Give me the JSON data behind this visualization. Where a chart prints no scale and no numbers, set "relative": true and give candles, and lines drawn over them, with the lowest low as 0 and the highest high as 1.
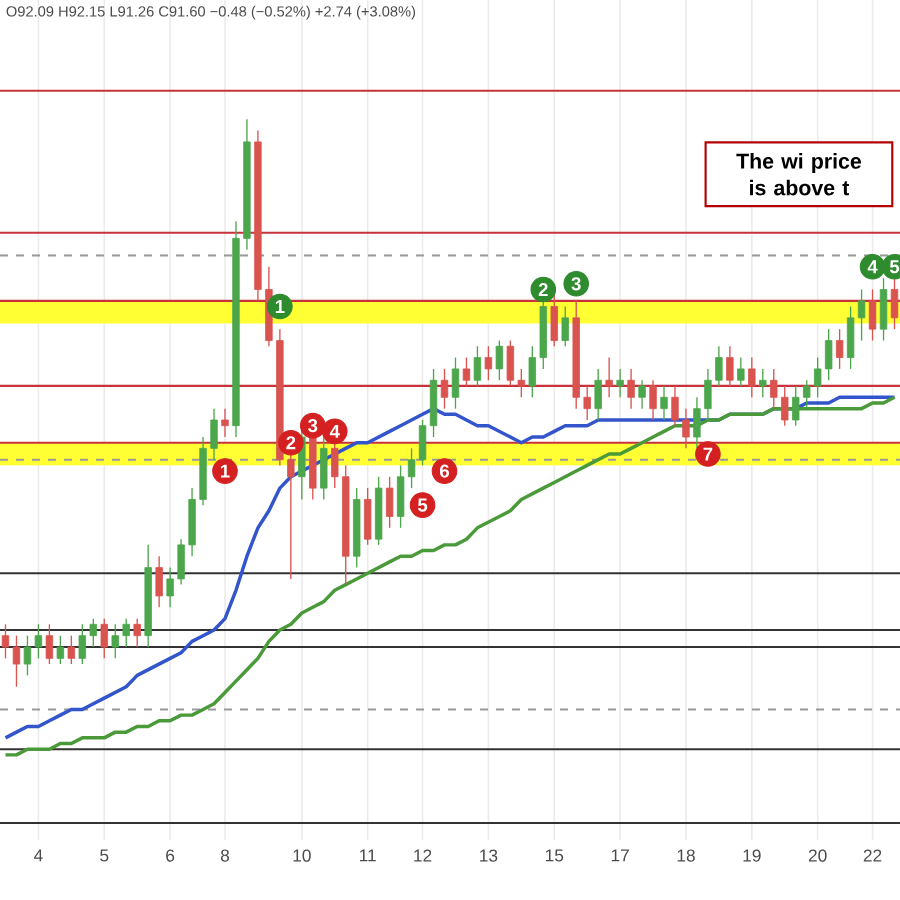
{
  "chart_data": {
    "type": "candlestick",
    "relative": true,
    "tick_labels": "x",
    "grid": "x",
    "annotations": [
      "O92.09 H92.15 L91.26 C91.60 −0.48 (−0.52%) +2.74 (+3.08%)",
      "The wi price is above t",
      {
        "text": "1",
        "y": 0.67
      },
      {
        "text": "2",
        "y": 0.7
      },
      {
        "text": "3",
        "y": 0.71
      },
      {
        "text": "4",
        "y": 0.74
      },
      {
        "text": "5",
        "y": 0.74
      },
      {
        "text": "1",
        "y": 0.38
      },
      {
        "text": "2",
        "y": 0.43
      },
      {
        "text": "3",
        "y": 0.46
      },
      {
        "text": "4",
        "y": 0.45
      },
      {
        "text": "5",
        "y": 0.32
      },
      {
        "text": "6",
        "y": 0.38
      },
      {
        "text": "7",
        "y": 0.41
      }
    ],
    "categories": [
      null,
      null,
      null,
      "4",
      null,
      null,
      null,
      null,
      null,
      "5",
      null,
      null,
      null,
      null,
      null,
      "6",
      null,
      null,
      null,
      null,
      "8",
      null,
      null,
      null,
      null,
      null,
      null,
      "10",
      null,
      null,
      null,
      null,
      null,
      "11",
      null,
      null,
      null,
      null,
      "12",
      null,
      null,
      null,
      null,
      null,
      "13",
      null,
      null,
      null,
      null,
      null,
      "15",
      null,
      null,
      null,
      null,
      null,
      "17",
      null,
      null,
      null,
      null,
      null,
      "18",
      null,
      null,
      null,
      null,
      null,
      "19",
      null,
      null,
      null,
      null,
      null,
      "20",
      null,
      null,
      null,
      null,
      "22",
      null,
      null
    ],
    "ohlc": [
      [
        0.09,
        0.11,
        0.05,
        0.07
      ],
      [
        0.07,
        0.09,
        0,
        0.04
      ],
      [
        0.04,
        0.09,
        0.02,
        0.07
      ],
      [
        0.07,
        0.11,
        0.05,
        0.09
      ],
      [
        0.09,
        0.11,
        0.04,
        0.05
      ],
      [
        0.05,
        0.09,
        0.04,
        0.07
      ],
      [
        0.07,
        0.09,
        0.04,
        0.05
      ],
      [
        0.05,
        0.11,
        0.04,
        0.09
      ],
      [
        0.09,
        0.12,
        0.07,
        0.11
      ],
      [
        0.11,
        0.12,
        0.05,
        0.07
      ],
      [
        0.07,
        0.11,
        0.05,
        0.09
      ],
      [
        0.09,
        0.12,
        0.07,
        0.11
      ],
      [
        0.11,
        0.12,
        0.07,
        0.09
      ],
      [
        0.09,
        0.25,
        0.07,
        0.21
      ],
      [
        0.21,
        0.23,
        0.14,
        0.16
      ],
      [
        0.16,
        0.21,
        0.14,
        0.19
      ],
      [
        0.19,
        0.26,
        0.18,
        0.25
      ],
      [
        0.25,
        0.35,
        0.23,
        0.33
      ],
      [
        0.33,
        0.44,
        0.32,
        0.42
      ],
      [
        0.42,
        0.49,
        0.4,
        0.47
      ],
      [
        0.47,
        0.49,
        0.44,
        0.46
      ],
      [
        0.46,
        0.82,
        0.44,
        0.79
      ],
      [
        0.79,
        1,
        0.77,
        0.96
      ],
      [
        0.96,
        0.98,
        0.68,
        0.7
      ],
      [
        0.7,
        0.74,
        0.6,
        0.61
      ],
      [
        0.61,
        0.63,
        0.39,
        0.4
      ],
      [
        0.4,
        0.42,
        0.19,
        0.37
      ],
      [
        0.37,
        0.46,
        0.33,
        0.44
      ],
      [
        0.44,
        0.46,
        0.33,
        0.35
      ],
      [
        0.35,
        0.44,
        0.33,
        0.42
      ],
      [
        0.42,
        0.44,
        0.35,
        0.37
      ],
      [
        0.37,
        0.39,
        0.18,
        0.23
      ],
      [
        0.23,
        0.35,
        0.21,
        0.33
      ],
      [
        0.33,
        0.35,
        0.25,
        0.26
      ],
      [
        0.26,
        0.37,
        0.25,
        0.35
      ],
      [
        0.35,
        0.37,
        0.28,
        0.3
      ],
      [
        0.3,
        0.39,
        0.28,
        0.37
      ],
      [
        0.37,
        0.42,
        0.35,
        0.4
      ],
      [
        0.4,
        0.47,
        0.39,
        0.46
      ],
      [
        0.46,
        0.56,
        0.44,
        0.54
      ],
      [
        0.54,
        0.56,
        0.49,
        0.51
      ],
      [
        0.51,
        0.58,
        0.49,
        0.56
      ],
      [
        0.56,
        0.58,
        0.53,
        0.54
      ],
      [
        0.54,
        0.6,
        0.53,
        0.58
      ],
      [
        0.58,
        0.6,
        0.54,
        0.56
      ],
      [
        0.56,
        0.61,
        0.54,
        0.6
      ],
      [
        0.6,
        0.61,
        0.53,
        0.54
      ],
      [
        0.54,
        0.56,
        0.51,
        0.53
      ],
      [
        0.53,
        0.6,
        0.51,
        0.58
      ],
      [
        0.58,
        0.7,
        0.56,
        0.67
      ],
      [
        0.67,
        0.7,
        0.6,
        0.61
      ],
      [
        0.61,
        0.67,
        0.6,
        0.65
      ],
      [
        0.65,
        0.68,
        0.49,
        0.51
      ],
      [
        0.51,
        0.53,
        0.47,
        0.49
      ],
      [
        0.49,
        0.56,
        0.47,
        0.54
      ],
      [
        0.54,
        0.58,
        0.51,
        0.53
      ],
      [
        0.53,
        0.56,
        0.51,
        0.54
      ],
      [
        0.54,
        0.56,
        0.49,
        0.51
      ],
      [
        0.51,
        0.54,
        0.49,
        0.53
      ],
      [
        0.53,
        0.54,
        0.47,
        0.49
      ],
      [
        0.49,
        0.53,
        0.47,
        0.51
      ],
      [
        0.51,
        0.53,
        0.46,
        0.47
      ],
      [
        0.47,
        0.49,
        0.42,
        0.44
      ],
      [
        0.44,
        0.51,
        0.42,
        0.49
      ],
      [
        0.49,
        0.56,
        0.47,
        0.54
      ],
      [
        0.54,
        0.6,
        0.53,
        0.58
      ],
      [
        0.58,
        0.6,
        0.53,
        0.54
      ],
      [
        0.54,
        0.58,
        0.53,
        0.56
      ],
      [
        0.56,
        0.58,
        0.51,
        0.53
      ],
      [
        0.53,
        0.56,
        0.51,
        0.54
      ],
      [
        0.54,
        0.56,
        0.49,
        0.51
      ],
      [
        0.51,
        0.53,
        0.46,
        0.47
      ],
      [
        0.47,
        0.53,
        0.46,
        0.51
      ],
      [
        0.51,
        0.54,
        0.49,
        0.53
      ],
      [
        0.53,
        0.58,
        0.51,
        0.56
      ],
      [
        0.56,
        0.63,
        0.54,
        0.61
      ],
      [
        0.61,
        0.63,
        0.56,
        0.58
      ],
      [
        0.58,
        0.67,
        0.56,
        0.65
      ],
      [
        0.65,
        0.7,
        0.61,
        0.68
      ],
      [
        0.68,
        0.7,
        0.61,
        0.63
      ],
      [
        0.63,
        0.72,
        0.61,
        0.7
      ],
      [
        0.7,
        0.72,
        0.63,
        0.65
      ]
    ],
    "series": [
      {
        "type": "line",
        "color": "#3355cc",
        "values": [
          -0.09,
          -0.08,
          -0.07,
          -0.07,
          -0.06,
          -0.05,
          -0.04,
          -0.04,
          -0.03,
          -0.02,
          -0.01,
          0.0,
          0.02,
          0.03,
          0.04,
          0.05,
          0.06,
          0.08,
          0.09,
          0.1,
          0.12,
          0.17,
          0.23,
          0.28,
          0.31,
          0.35,
          0.37,
          0.38,
          0.39,
          0.4,
          0.41,
          0.42,
          0.43,
          0.43,
          0.44,
          0.45,
          0.46,
          0.47,
          0.48,
          0.49,
          0.48,
          0.48,
          0.47,
          0.46,
          0.46,
          0.45,
          0.44,
          0.43,
          0.44,
          0.44,
          0.45,
          0.46,
          0.46,
          0.46,
          0.47,
          0.47,
          0.47,
          0.47,
          0.47,
          0.47,
          0.47,
          0.47,
          0.47,
          0.47,
          0.47,
          0.47,
          0.48,
          0.48,
          0.48,
          0.48,
          0.49,
          0.49,
          0.49,
          0.5,
          0.5,
          0.5,
          0.51,
          0.51,
          0.51,
          0.51,
          0.51,
          0.51
        ]
      },
      {
        "type": "line",
        "color": "#4a9a3a",
        "values": [
          -0.12,
          -0.12,
          -0.11,
          -0.11,
          -0.11,
          -0.1,
          -0.1,
          -0.09,
          -0.09,
          -0.09,
          -0.08,
          -0.08,
          -0.07,
          -0.07,
          -0.06,
          -0.06,
          -0.05,
          -0.05,
          -0.04,
          -0.03,
          -0.01,
          0.01,
          0.03,
          0.05,
          0.08,
          0.1,
          0.11,
          0.13,
          0.14,
          0.15,
          0.17,
          0.18,
          0.19,
          0.2,
          0.21,
          0.22,
          0.23,
          0.23,
          0.24,
          0.24,
          0.25,
          0.25,
          0.26,
          0.28,
          0.29,
          0.3,
          0.31,
          0.33,
          0.34,
          0.35,
          0.36,
          0.37,
          0.38,
          0.39,
          0.4,
          0.41,
          0.41,
          0.42,
          0.43,
          0.44,
          0.45,
          0.46,
          0.46,
          0.46,
          0.47,
          0.47,
          0.48,
          0.48,
          0.48,
          0.48,
          0.49,
          0.49,
          0.49,
          0.49,
          0.49,
          0.49,
          0.49,
          0.49,
          0.49,
          0.5,
          0.5,
          0.51
        ]
      },
      {
        "type": "scatter",
        "marker": "circle",
        "color": "#2e8b2e",
        "values": [
          null,
          null,
          null,
          null,
          null,
          null,
          null,
          null,
          null,
          null,
          null,
          null,
          null,
          null,
          null,
          null,
          null,
          null,
          null,
          null,
          null,
          null,
          null,
          null,
          null,
          0.67,
          null,
          null,
          null,
          null,
          null,
          null,
          null,
          null,
          null,
          null,
          null,
          null,
          null,
          null,
          null,
          null,
          null,
          null,
          null,
          null,
          null,
          null,
          null,
          0.7,
          null,
          null,
          0.71,
          null,
          null,
          null,
          null,
          null,
          null,
          null,
          null,
          null,
          null,
          null,
          null,
          null,
          null,
          null,
          null,
          null,
          null,
          null,
          null,
          null,
          null,
          null,
          null,
          null,
          null,
          0.74,
          null,
          0.74
        ]
      },
      {
        "type": "scatter",
        "marker": "circle",
        "color": "#d42020",
        "values": [
          null,
          null,
          null,
          null,
          null,
          null,
          null,
          null,
          null,
          null,
          null,
          null,
          null,
          null,
          null,
          null,
          null,
          null,
          null,
          null,
          0.38,
          null,
          null,
          null,
          null,
          null,
          0.43,
          null,
          0.46,
          null,
          0.45,
          null,
          null,
          null,
          null,
          null,
          null,
          null,
          0.32,
          null,
          0.38,
          null,
          null,
          null,
          null,
          null,
          null,
          null,
          null,
          null,
          null,
          null,
          null,
          null,
          null,
          null,
          null,
          null,
          null,
          null,
          null,
          null,
          null,
          null,
          0.41,
          null,
          null,
          null,
          null,
          null,
          null,
          null,
          null,
          null,
          null,
          null,
          null,
          null,
          null,
          null,
          null,
          null
        ]
      }
    ],
    "bands": [
      {
        "axis": "y",
        "from": 0.64,
        "to": 0.68,
        "color": "#ffff33"
      },
      {
        "axis": "y",
        "from": 0.39,
        "to": 0.43,
        "color": "#ffff33"
      }
    ],
    "ref_lines": [
      {
        "axis": "y",
        "value": 1.05,
        "color": "#c8323a",
        "line_style": "solid"
      },
      {
        "axis": "y",
        "value": 0.8,
        "color": "#c8323a",
        "line_style": "solid"
      },
      {
        "axis": "y",
        "value": 0.76,
        "color": "#999999",
        "line_style": "dashed"
      },
      {
        "axis": "y",
        "value": 0.68,
        "color": "#c8323a",
        "line_style": "solid"
      },
      {
        "axis": "y",
        "value": 0.53,
        "color": "#c8323a",
        "line_style": "solid"
      },
      {
        "axis": "y",
        "value": 0.43,
        "color": "#c8323a",
        "line_style": "solid"
      },
      {
        "axis": "y",
        "value": 0.4,
        "color": "#999999",
        "line_style": "dashed"
      },
      {
        "axis": "y",
        "value": 0.2,
        "color": "#333333",
        "line_style": "solid"
      },
      {
        "axis": "y",
        "value": 0.1,
        "color": "#333333",
        "line_style": "solid"
      },
      {
        "axis": "y",
        "value": 0.07,
        "color": "#333333",
        "line_style": "solid"
      },
      {
        "axis": "y",
        "value": -0.04,
        "color": "#999999",
        "line_style": "dashed"
      },
      {
        "axis": "y",
        "value": -0.11,
        "color": "#333333",
        "line_style": "solid"
      },
      {
        "axis": "y",
        "value": -0.24,
        "color": "#333333",
        "line_style": "solid"
      }
    ]
  }
}
